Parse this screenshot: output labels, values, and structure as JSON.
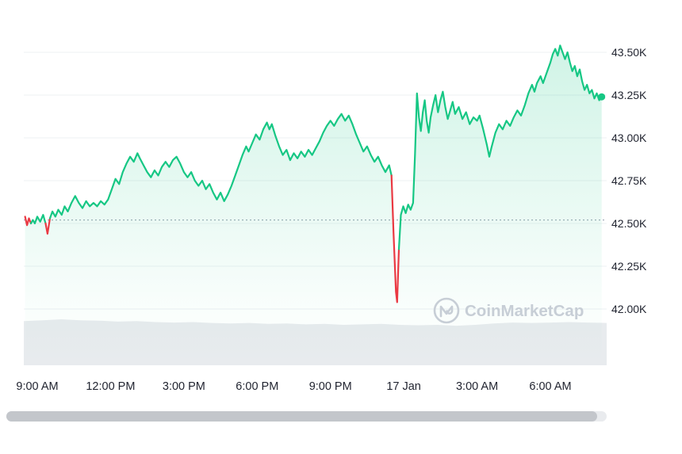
{
  "watermark": {
    "label": "CoinMarketCap"
  },
  "chart_data": {
    "type": "line",
    "x_unit": "hours since 9:00 AM",
    "y_unit": "USD (thousands)",
    "x_range_hours": [
      -0.5,
      23.1
    ],
    "y_grid_range": [
      42.0,
      43.5
    ],
    "x_ticks": [
      {
        "t": 0,
        "label": "9:00 AM"
      },
      {
        "t": 3,
        "label": "12:00 PM"
      },
      {
        "t": 6,
        "label": "3:00 PM"
      },
      {
        "t": 9,
        "label": "6:00 PM"
      },
      {
        "t": 12,
        "label": "9:00 PM"
      },
      {
        "t": 15,
        "label": "17 Jan"
      },
      {
        "t": 18,
        "label": "3:00 AM"
      },
      {
        "t": 21,
        "label": "6:00 AM"
      }
    ],
    "y_ticks": [
      {
        "value": 43.5,
        "label": "43.50K"
      },
      {
        "value": 43.25,
        "label": "43.25K"
      },
      {
        "value": 43.0,
        "label": "43.00K"
      },
      {
        "value": 42.75,
        "label": "42.75K"
      },
      {
        "value": 42.5,
        "label": "42.50K"
      },
      {
        "value": 42.25,
        "label": "42.25K"
      },
      {
        "value": 42.0,
        "label": "42.00K"
      }
    ],
    "baseline_value": 42.52,
    "red_ranges": [
      [
        -0.47,
        -0.29
      ],
      [
        0.36,
        0.5
      ],
      [
        14.5,
        14.83
      ]
    ],
    "points": [
      [
        -0.5,
        42.54
      ],
      [
        -0.42,
        42.49
      ],
      [
        -0.34,
        42.53
      ],
      [
        -0.26,
        42.5
      ],
      [
        -0.18,
        42.52
      ],
      [
        -0.1,
        42.5
      ],
      [
        0,
        42.54
      ],
      [
        0.12,
        42.51
      ],
      [
        0.24,
        42.55
      ],
      [
        0.34,
        42.5
      ],
      [
        0.42,
        42.44
      ],
      [
        0.52,
        42.53
      ],
      [
        0.62,
        42.57
      ],
      [
        0.74,
        42.54
      ],
      [
        0.86,
        42.58
      ],
      [
        1.0,
        42.55
      ],
      [
        1.12,
        42.6
      ],
      [
        1.25,
        42.57
      ],
      [
        1.4,
        42.62
      ],
      [
        1.55,
        42.66
      ],
      [
        1.7,
        42.62
      ],
      [
        1.85,
        42.59
      ],
      [
        2.0,
        42.63
      ],
      [
        2.15,
        42.6
      ],
      [
        2.3,
        42.62
      ],
      [
        2.45,
        42.6
      ],
      [
        2.6,
        42.63
      ],
      [
        2.75,
        42.61
      ],
      [
        2.9,
        42.64
      ],
      [
        3.05,
        42.7
      ],
      [
        3.2,
        42.76
      ],
      [
        3.35,
        42.73
      ],
      [
        3.5,
        42.8
      ],
      [
        3.65,
        42.85
      ],
      [
        3.8,
        42.89
      ],
      [
        3.95,
        42.86
      ],
      [
        4.1,
        42.91
      ],
      [
        4.2,
        42.88
      ],
      [
        4.35,
        42.84
      ],
      [
        4.5,
        42.8
      ],
      [
        4.65,
        42.77
      ],
      [
        4.8,
        42.81
      ],
      [
        4.95,
        42.78
      ],
      [
        5.1,
        42.83
      ],
      [
        5.25,
        42.86
      ],
      [
        5.4,
        42.83
      ],
      [
        5.55,
        42.87
      ],
      [
        5.7,
        42.89
      ],
      [
        5.85,
        42.85
      ],
      [
        6.0,
        42.8
      ],
      [
        6.15,
        42.77
      ],
      [
        6.3,
        42.8
      ],
      [
        6.45,
        42.75
      ],
      [
        6.6,
        42.72
      ],
      [
        6.75,
        42.75
      ],
      [
        6.9,
        42.7
      ],
      [
        7.05,
        42.73
      ],
      [
        7.2,
        42.68
      ],
      [
        7.35,
        42.64
      ],
      [
        7.5,
        42.68
      ],
      [
        7.65,
        42.63
      ],
      [
        7.8,
        42.67
      ],
      [
        7.95,
        42.72
      ],
      [
        8.1,
        42.78
      ],
      [
        8.25,
        42.84
      ],
      [
        8.4,
        42.9
      ],
      [
        8.55,
        42.95
      ],
      [
        8.65,
        42.92
      ],
      [
        8.8,
        42.97
      ],
      [
        8.95,
        43.02
      ],
      [
        9.1,
        42.99
      ],
      [
        9.25,
        43.05
      ],
      [
        9.4,
        43.09
      ],
      [
        9.5,
        43.05
      ],
      [
        9.6,
        43.08
      ],
      [
        9.75,
        43.01
      ],
      [
        9.9,
        42.95
      ],
      [
        10.05,
        42.9
      ],
      [
        10.2,
        42.93
      ],
      [
        10.35,
        42.87
      ],
      [
        10.5,
        42.91
      ],
      [
        10.65,
        42.88
      ],
      [
        10.8,
        42.92
      ],
      [
        10.95,
        42.89
      ],
      [
        11.1,
        42.93
      ],
      [
        11.25,
        42.9
      ],
      [
        11.4,
        42.94
      ],
      [
        11.55,
        42.98
      ],
      [
        11.7,
        43.03
      ],
      [
        11.85,
        43.07
      ],
      [
        12.0,
        43.1
      ],
      [
        12.15,
        43.07
      ],
      [
        12.3,
        43.11
      ],
      [
        12.45,
        43.14
      ],
      [
        12.6,
        43.1
      ],
      [
        12.75,
        43.13
      ],
      [
        12.9,
        43.08
      ],
      [
        13.05,
        43.02
      ],
      [
        13.2,
        42.97
      ],
      [
        13.35,
        42.92
      ],
      [
        13.5,
        42.95
      ],
      [
        13.65,
        42.9
      ],
      [
        13.8,
        42.86
      ],
      [
        13.95,
        42.89
      ],
      [
        14.1,
        42.84
      ],
      [
        14.25,
        42.8
      ],
      [
        14.4,
        42.84
      ],
      [
        14.5,
        42.78
      ],
      [
        14.58,
        42.45
      ],
      [
        14.68,
        42.1
      ],
      [
        14.73,
        42.04
      ],
      [
        14.8,
        42.35
      ],
      [
        14.88,
        42.55
      ],
      [
        14.98,
        42.6
      ],
      [
        15.08,
        42.56
      ],
      [
        15.18,
        42.61
      ],
      [
        15.28,
        42.58
      ],
      [
        15.38,
        42.62
      ],
      [
        15.46,
        42.9
      ],
      [
        15.54,
        43.26
      ],
      [
        15.62,
        43.12
      ],
      [
        15.7,
        43.04
      ],
      [
        15.78,
        43.15
      ],
      [
        15.86,
        43.22
      ],
      [
        15.94,
        43.1
      ],
      [
        16.02,
        43.03
      ],
      [
        16.1,
        43.12
      ],
      [
        16.2,
        43.19
      ],
      [
        16.3,
        43.25
      ],
      [
        16.4,
        43.15
      ],
      [
        16.5,
        43.22
      ],
      [
        16.6,
        43.27
      ],
      [
        16.7,
        43.18
      ],
      [
        16.8,
        43.11
      ],
      [
        16.9,
        43.16
      ],
      [
        17.0,
        43.21
      ],
      [
        17.1,
        43.14
      ],
      [
        17.25,
        43.18
      ],
      [
        17.4,
        43.11
      ],
      [
        17.55,
        43.15
      ],
      [
        17.7,
        43.08
      ],
      [
        17.85,
        43.12
      ],
      [
        18.0,
        43.1
      ],
      [
        18.1,
        43.13
      ],
      [
        18.25,
        43.05
      ],
      [
        18.4,
        42.96
      ],
      [
        18.5,
        42.89
      ],
      [
        18.6,
        42.95
      ],
      [
        18.75,
        43.03
      ],
      [
        18.9,
        43.08
      ],
      [
        19.05,
        43.05
      ],
      [
        19.2,
        43.1
      ],
      [
        19.35,
        43.07
      ],
      [
        19.5,
        43.12
      ],
      [
        19.65,
        43.16
      ],
      [
        19.8,
        43.13
      ],
      [
        19.95,
        43.19
      ],
      [
        20.1,
        43.26
      ],
      [
        20.25,
        43.31
      ],
      [
        20.35,
        43.27
      ],
      [
        20.45,
        43.32
      ],
      [
        20.6,
        43.36
      ],
      [
        20.7,
        43.32
      ],
      [
        20.85,
        43.38
      ],
      [
        21.0,
        43.44
      ],
      [
        21.1,
        43.49
      ],
      [
        21.2,
        43.52
      ],
      [
        21.3,
        43.48
      ],
      [
        21.4,
        43.54
      ],
      [
        21.5,
        43.5
      ],
      [
        21.6,
        43.46
      ],
      [
        21.7,
        43.5
      ],
      [
        21.8,
        43.44
      ],
      [
        21.9,
        43.39
      ],
      [
        22.0,
        43.42
      ],
      [
        22.1,
        43.36
      ],
      [
        22.2,
        43.4
      ],
      [
        22.3,
        43.33
      ],
      [
        22.4,
        43.28
      ],
      [
        22.5,
        43.31
      ],
      [
        22.6,
        43.26
      ],
      [
        22.7,
        43.28
      ],
      [
        22.8,
        43.23
      ],
      [
        22.9,
        43.26
      ],
      [
        23.0,
        43.22
      ],
      [
        23.1,
        43.24
      ]
    ],
    "volume_profile": [
      0.96,
      0.98,
      1.0,
      0.98,
      0.97,
      0.95,
      0.96,
      0.94,
      0.93,
      0.94,
      0.92,
      0.91,
      0.92,
      0.9,
      0.91,
      0.89,
      0.9,
      0.88,
      0.89,
      0.9,
      0.88,
      0.87,
      0.88,
      0.86,
      0.88,
      0.91,
      0.93,
      0.92,
      0.93,
      0.94,
      0.93,
      0.92
    ],
    "colors": {
      "up": "#16c784",
      "down": "#ea3943",
      "grid": "#edf0f3",
      "baseline": "#9aa4b2",
      "axis_text": "#222531",
      "volume": "#e8ebee",
      "watermark": "#c7ced6",
      "scrollbar_thumb": "#c3c6cb",
      "scrollbar_track": "#e9ebee"
    }
  }
}
